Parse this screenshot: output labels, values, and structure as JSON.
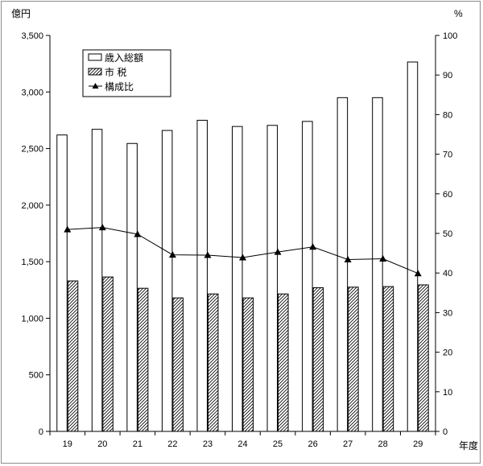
{
  "chart_data": {
    "type": "bar",
    "categories": [
      "19",
      "20",
      "21",
      "22",
      "23",
      "24",
      "25",
      "26",
      "27",
      "28",
      "29"
    ],
    "series": [
      {
        "name": "歳入総額",
        "type": "bar",
        "axis": "left",
        "pattern": "white",
        "values": [
          2620,
          2670,
          2545,
          2660,
          2750,
          2695,
          2705,
          2740,
          2950,
          2950,
          3265
        ]
      },
      {
        "name": "市 税",
        "type": "bar",
        "axis": "left",
        "pattern": "hatched",
        "values": [
          1330,
          1365,
          1265,
          1180,
          1215,
          1180,
          1215,
          1270,
          1275,
          1280,
          1295
        ]
      },
      {
        "name": "構成比",
        "type": "line",
        "axis": "right",
        "marker": "triangle",
        "values": [
          51.0,
          51.5,
          49.8,
          44.6,
          44.5,
          43.9,
          45.3,
          46.6,
          43.4,
          43.6,
          39.9
        ]
      }
    ],
    "y_left": {
      "label": "億円",
      "min": 0,
      "max": 3500,
      "step": 500,
      "tick_labels": [
        "0",
        "500",
        "1,000",
        "1,500",
        "2,000",
        "2,500",
        "3,000",
        "3,500"
      ]
    },
    "y_right": {
      "label": "%",
      "min": 0,
      "max": 100,
      "step": 10,
      "tick_labels": [
        "0",
        "10",
        "20",
        "30",
        "40",
        "50",
        "60",
        "70",
        "80",
        "90",
        "100"
      ]
    },
    "xlabel": "年度",
    "grid": false,
    "legend": {
      "position": "top-left"
    },
    "colors": {
      "axis": "#000000",
      "bar_fill": "#ffffff",
      "hatch": "#000000",
      "line": "#000000",
      "frame": "#8c8c8c"
    }
  }
}
